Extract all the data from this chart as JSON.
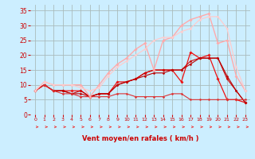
{
  "background_color": "#cceeff",
  "grid_color": "#aabbbb",
  "xlabel": "Vent moyen/en rafales ( km/h )",
  "xlabel_color": "#cc0000",
  "xlabel_fontsize": 6.0,
  "tick_color": "#cc0000",
  "ytick_color": "#cc0000",
  "ylim": [
    0,
    37
  ],
  "xlim": [
    -0.5,
    23.5
  ],
  "yticks": [
    0,
    5,
    10,
    15,
    20,
    25,
    30,
    35
  ],
  "xticks": [
    0,
    1,
    2,
    3,
    4,
    5,
    6,
    7,
    8,
    9,
    10,
    11,
    12,
    13,
    14,
    15,
    16,
    17,
    18,
    19,
    20,
    21,
    22,
    23
  ],
  "lines": [
    {
      "x": [
        0,
        1,
        2,
        3,
        4,
        5,
        6,
        7,
        8,
        9,
        10,
        11,
        12,
        13,
        14,
        15,
        16,
        17,
        18,
        19,
        20,
        21,
        22,
        23
      ],
      "y": [
        8,
        10,
        8,
        8,
        8,
        8,
        6,
        7,
        7,
        11,
        11,
        12,
        14,
        15,
        15,
        15,
        11,
        21,
        19,
        20,
        12,
        5,
        5,
        4
      ],
      "color": "#ee1111",
      "lw": 0.9,
      "marker": "D",
      "ms": 1.8
    },
    {
      "x": [
        0,
        1,
        2,
        3,
        4,
        5,
        6,
        7,
        8,
        9,
        10,
        11,
        12,
        13,
        14,
        15,
        16,
        17,
        18,
        19,
        20,
        21,
        22,
        23
      ],
      "y": [
        8,
        10,
        8,
        8,
        7,
        8,
        6,
        7,
        7,
        10,
        11,
        12,
        14,
        15,
        15,
        15,
        15,
        18,
        19,
        19,
        19,
        12,
        8,
        4
      ],
      "color": "#cc0000",
      "lw": 0.8,
      "marker": "D",
      "ms": 1.5
    },
    {
      "x": [
        0,
        1,
        2,
        3,
        4,
        5,
        6,
        7,
        8,
        9,
        10,
        11,
        12,
        13,
        14,
        15,
        16,
        17,
        18,
        19,
        20,
        21,
        22,
        23
      ],
      "y": [
        8,
        10,
        8,
        8,
        7,
        7,
        6,
        7,
        7,
        10,
        11,
        12,
        13,
        14,
        14,
        15,
        15,
        17,
        19,
        19,
        19,
        13,
        8,
        4
      ],
      "color": "#bb0000",
      "lw": 0.8,
      "marker": "D",
      "ms": 1.5
    },
    {
      "x": [
        0,
        1,
        2,
        3,
        4,
        5,
        6,
        7,
        8,
        9,
        10,
        11,
        12,
        13,
        14,
        15,
        16,
        17,
        18,
        19,
        20,
        21,
        22,
        23
      ],
      "y": [
        8,
        10,
        8,
        7,
        7,
        6,
        6,
        6,
        6,
        7,
        7,
        6,
        6,
        6,
        6,
        7,
        7,
        5,
        5,
        5,
        5,
        5,
        5,
        5
      ],
      "color": "#dd3333",
      "lw": 0.8,
      "marker": "D",
      "ms": 1.5
    },
    {
      "x": [
        0,
        1,
        2,
        3,
        4,
        5,
        6,
        7,
        8,
        9,
        10,
        11,
        12,
        13,
        14,
        15,
        16,
        17,
        18,
        19,
        20,
        21,
        22,
        23
      ],
      "y": [
        8,
        11,
        10,
        10,
        10,
        10,
        6,
        10,
        14,
        17,
        19,
        22,
        24,
        15,
        25,
        26,
        30,
        32,
        33,
        34,
        24,
        25,
        13,
        8
      ],
      "color": "#ffaaaa",
      "lw": 1.0,
      "marker": "D",
      "ms": 1.8
    },
    {
      "x": [
        0,
        1,
        2,
        3,
        4,
        5,
        6,
        7,
        8,
        9,
        10,
        11,
        12,
        13,
        14,
        15,
        16,
        17,
        18,
        19,
        20,
        21,
        22,
        23
      ],
      "y": [
        8,
        11,
        10,
        10,
        10,
        9,
        8,
        9,
        13,
        16,
        18,
        20,
        22,
        25,
        26,
        26,
        28,
        29,
        32,
        33,
        33,
        29,
        16,
        8
      ],
      "color": "#ffcccc",
      "lw": 0.9,
      "marker": "D",
      "ms": 1.5
    }
  ],
  "arrow_color": "#ee3333",
  "arrow_lw": 0.6
}
